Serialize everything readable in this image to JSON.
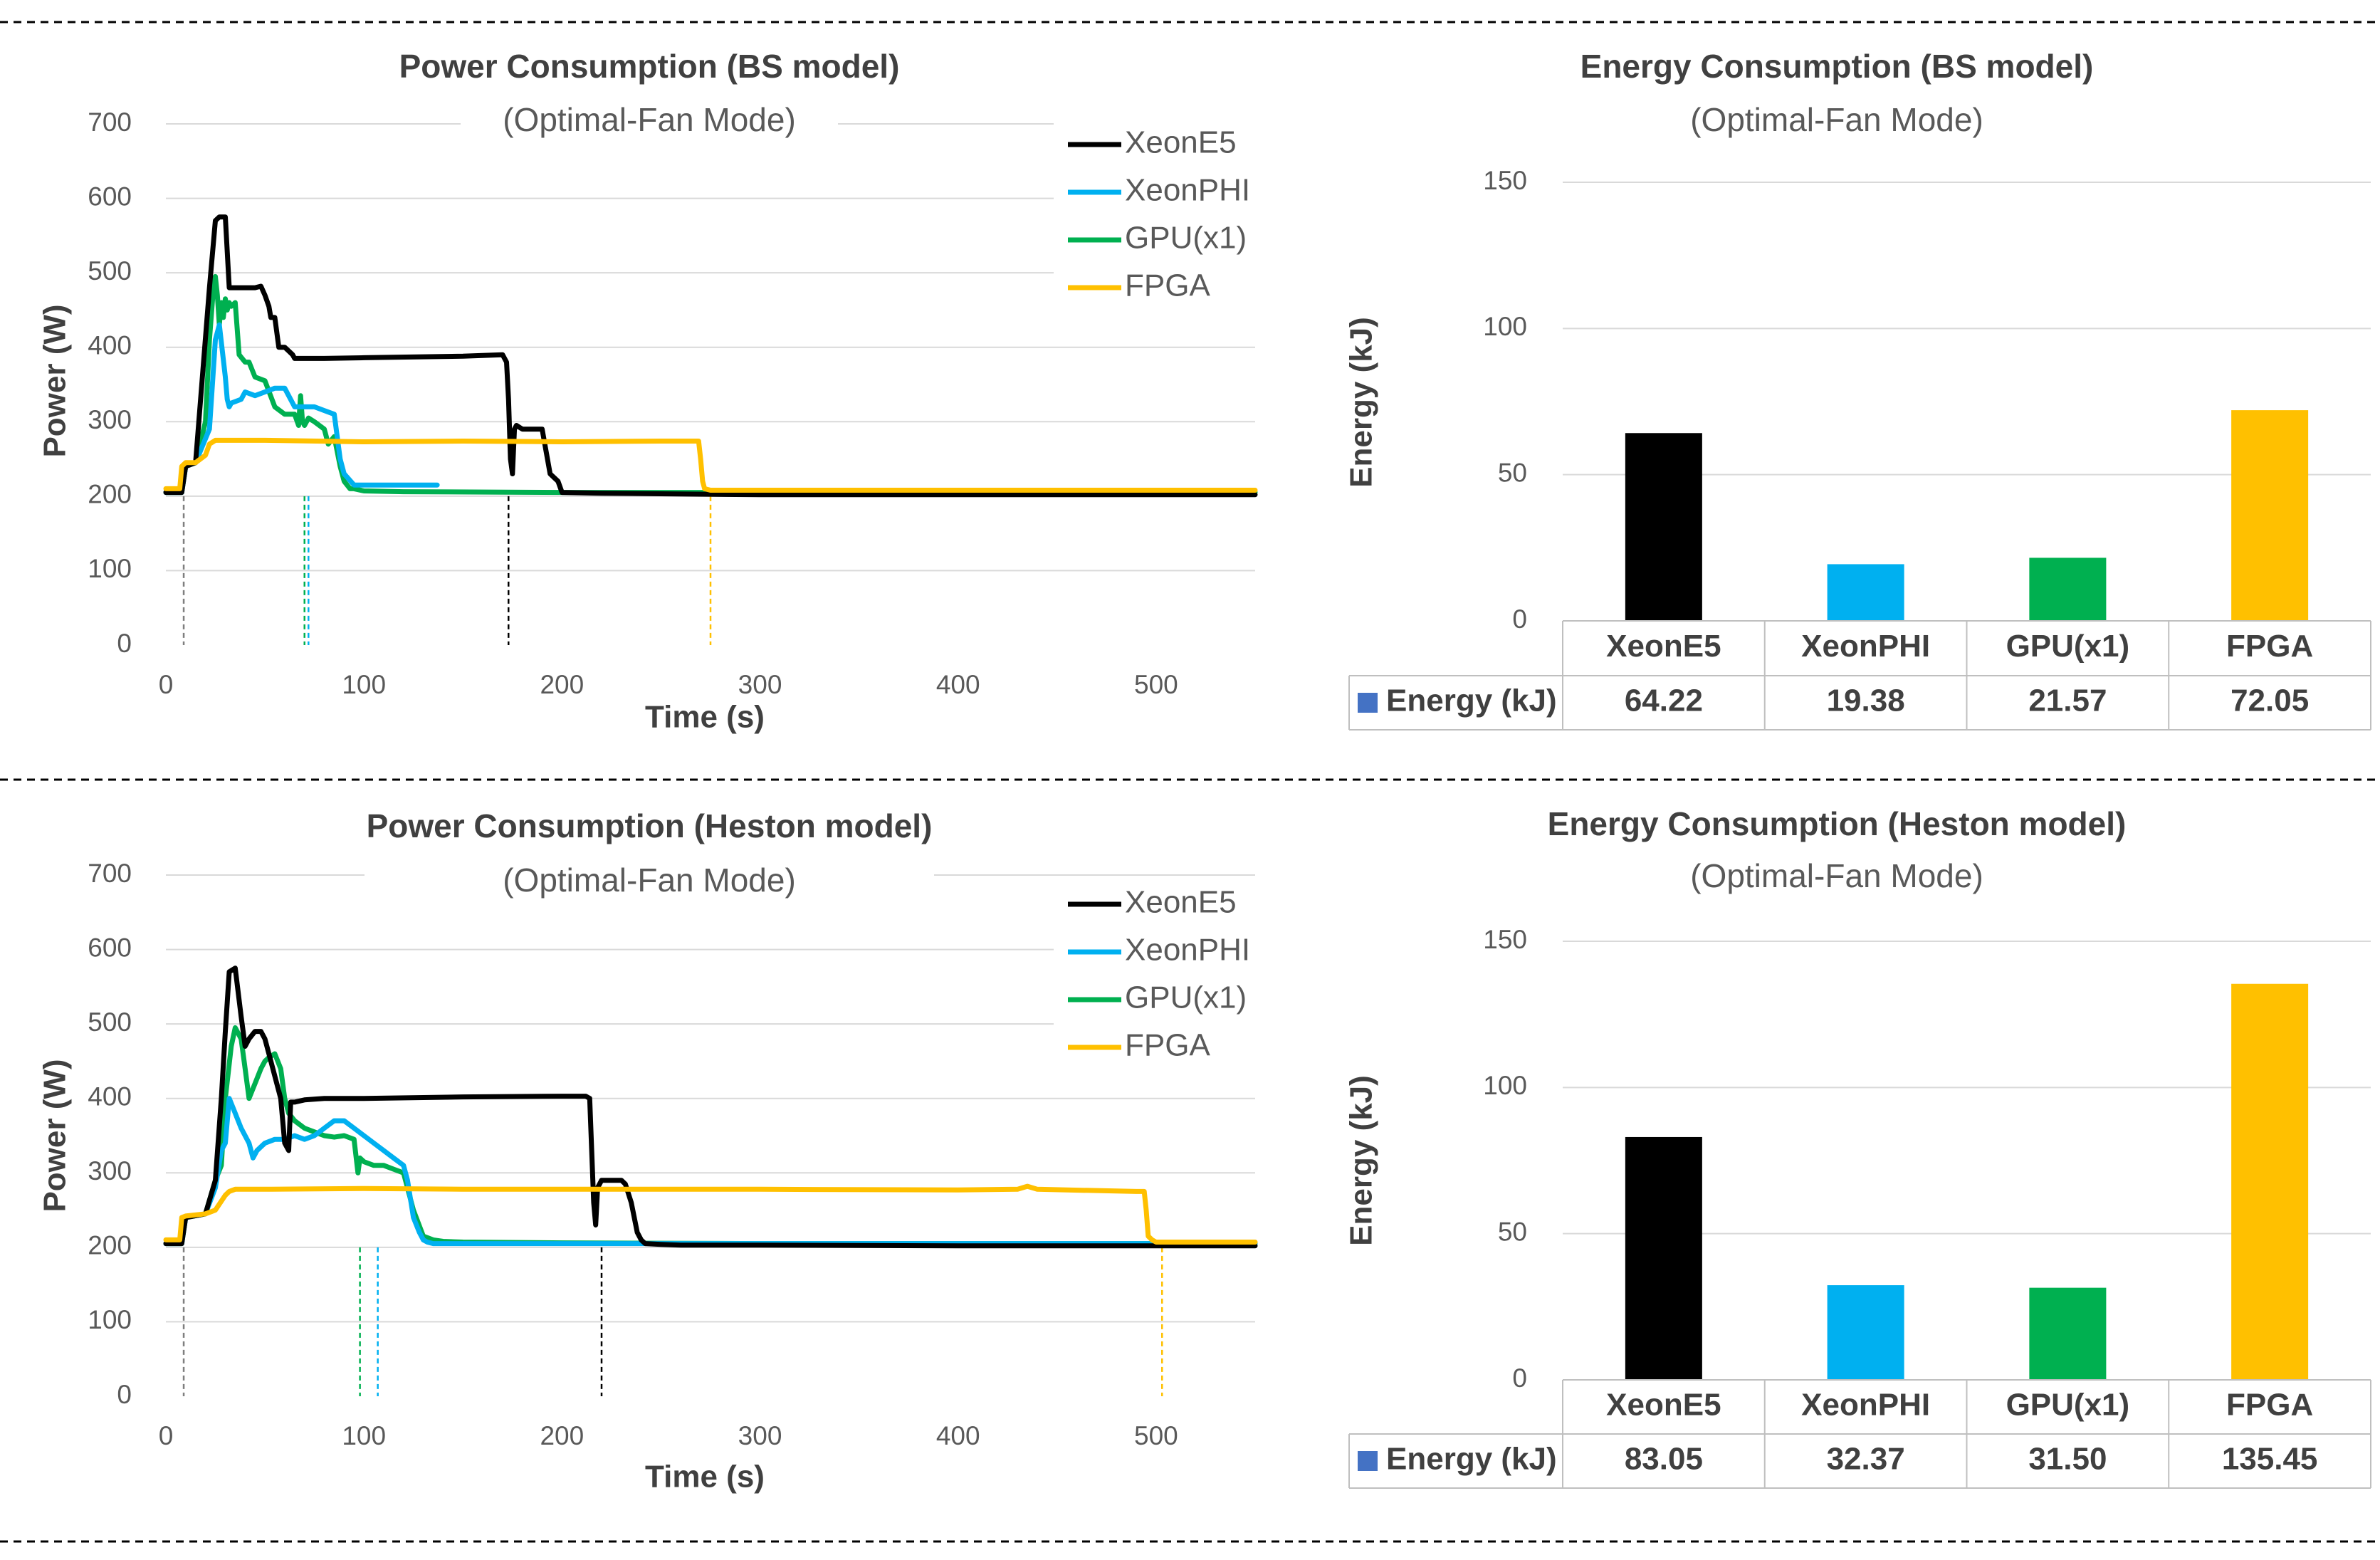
{
  "colors": {
    "XeonE5": "#000000",
    "XeonPHI": "#00B0F0",
    "GPU": "#00B050",
    "FPGA": "#FFC000",
    "grey_marker": "#7f7f7f",
    "legend_square": "#4472C4",
    "grid": "#d9d9d9",
    "text": "#595959",
    "title": "#404040"
  },
  "chart_data": [
    {
      "id": "bs-power",
      "type": "line",
      "title": "Power Consumption (BS model)",
      "subtitle": "(Optimal-Fan Mode)",
      "xlabel": "Time (s)",
      "ylabel": "Power (W)",
      "xlim": [
        0,
        550
      ],
      "ylim": [
        0,
        700
      ],
      "xticks": [
        0,
        100,
        200,
        300,
        400,
        500
      ],
      "yticks": [
        0,
        100,
        200,
        300,
        400,
        500,
        600,
        700
      ],
      "legend": [
        "XeonE5",
        "XeonPHI",
        "GPU(x1)",
        "FPGA"
      ],
      "legend_position": "top-right",
      "series": [
        {
          "name": "XeonE5",
          "color_key": "XeonE5",
          "x": [
            0,
            8,
            10,
            15,
            22,
            25,
            27,
            30,
            32,
            33,
            40,
            45,
            48,
            50,
            52,
            53,
            55,
            57,
            58,
            60,
            62,
            64,
            65,
            70,
            80,
            100,
            150,
            170,
            172,
            173,
            174,
            175,
            176,
            177,
            180,
            190,
            192,
            194,
            196,
            198,
            200,
            220,
            300,
            400,
            550
          ],
          "y": [
            205,
            205,
            240,
            245,
            480,
            570,
            575,
            575,
            480,
            480,
            480,
            480,
            482,
            470,
            455,
            440,
            440,
            400,
            400,
            400,
            395,
            390,
            385,
            385,
            385,
            386,
            388,
            390,
            380,
            330,
            250,
            230,
            290,
            295,
            290,
            290,
            260,
            230,
            225,
            220,
            205,
            204,
            202,
            202,
            202
          ]
        },
        {
          "name": "XeonPHI",
          "color_key": "XeonPHI",
          "x": [
            0,
            8,
            10,
            15,
            22,
            25,
            27,
            30,
            31,
            32,
            33,
            38,
            40,
            45,
            50,
            55,
            60,
            65,
            70,
            75,
            80,
            85,
            88,
            90,
            95,
            100,
            120,
            137
          ],
          "y": [
            205,
            205,
            240,
            245,
            290,
            410,
            430,
            360,
            330,
            320,
            325,
            330,
            340,
            335,
            340,
            345,
            345,
            320,
            320,
            320,
            315,
            310,
            250,
            230,
            215,
            215,
            215,
            215
          ]
        },
        {
          "name": "GPU(x1)",
          "color_key": "GPU",
          "x": [
            0,
            8,
            10,
            15,
            20,
            22,
            24,
            25,
            26,
            27,
            28,
            29,
            30,
            31,
            32,
            33,
            35,
            37,
            40,
            42,
            45,
            50,
            55,
            60,
            65,
            67,
            68,
            69,
            70,
            71,
            72,
            75,
            80,
            82,
            85,
            88,
            90,
            93,
            95,
            100,
            120,
            200,
            550
          ],
          "y": [
            205,
            205,
            240,
            245,
            300,
            410,
            480,
            495,
            470,
            430,
            460,
            440,
            465,
            450,
            460,
            455,
            460,
            390,
            380,
            380,
            360,
            355,
            320,
            310,
            310,
            295,
            335,
            300,
            295,
            300,
            305,
            300,
            290,
            270,
            280,
            240,
            220,
            210,
            210,
            207,
            206,
            205,
            205
          ]
        },
        {
          "name": "FPGA",
          "color_key": "FPGA",
          "x": [
            0,
            7,
            8,
            10,
            15,
            20,
            22,
            25,
            30,
            50,
            100,
            150,
            200,
            250,
            269,
            270,
            271,
            272,
            275,
            300,
            550
          ],
          "y": [
            210,
            210,
            240,
            245,
            245,
            255,
            270,
            275,
            275,
            275,
            273,
            274,
            273,
            274,
            274,
            250,
            220,
            210,
            208,
            208,
            208
          ]
        }
      ],
      "markers": [
        {
          "x": 9,
          "color_key": "grey_marker"
        },
        {
          "x": 70,
          "color_key": "GPU"
        },
        {
          "x": 72,
          "color_key": "XeonPHI"
        },
        {
          "x": 173,
          "color_key": "XeonE5"
        },
        {
          "x": 275,
          "color_key": "FPGA"
        }
      ]
    },
    {
      "id": "bs-energy",
      "type": "bar",
      "title": "Energy Consumption (BS model)",
      "subtitle": "(Optimal-Fan Mode)",
      "ylabel": "Energy (kJ)",
      "ylim": [
        0,
        150
      ],
      "yticks": [
        0,
        50,
        100,
        150
      ],
      "categories": [
        "XeonE5",
        "XeonPHI",
        "GPU(x1)",
        "FPGA"
      ],
      "color_keys": [
        "XeonE5",
        "XeonPHI",
        "GPU",
        "FPGA"
      ],
      "series": [
        {
          "name": "Energy (kJ)",
          "values": [
            64.22,
            19.38,
            21.57,
            72.05
          ]
        }
      ],
      "table": {
        "row_label": "Energy (kJ)",
        "cells": [
          "64.22",
          "19.38",
          "21.57",
          "72.05"
        ]
      }
    },
    {
      "id": "heston-power",
      "type": "line",
      "title": "Power Consumption (Heston model)",
      "subtitle": "(Optimal-Fan Mode)",
      "xlabel": "Time (s)",
      "ylabel": "Power (W)",
      "xlim": [
        0,
        550
      ],
      "ylim": [
        0,
        700
      ],
      "xticks": [
        0,
        100,
        200,
        300,
        400,
        500
      ],
      "yticks": [
        0,
        100,
        200,
        300,
        400,
        500,
        600,
        700
      ],
      "legend": [
        "XeonE5",
        "XeonPHI",
        "GPU(x1)",
        "FPGA"
      ],
      "legend_position": "top-right",
      "series": [
        {
          "name": "XeonE5",
          "color_key": "XeonE5",
          "x": [
            0,
            8,
            10,
            20,
            25,
            28,
            30,
            32,
            35,
            38,
            40,
            42,
            45,
            48,
            50,
            52,
            55,
            58,
            60,
            62,
            63,
            65,
            70,
            80,
            100,
            150,
            200,
            212,
            214,
            215,
            216,
            217,
            218,
            220,
            225,
            230,
            232,
            235,
            238,
            240,
            242,
            250,
            260,
            300,
            400,
            550
          ],
          "y": [
            205,
            205,
            240,
            245,
            290,
            400,
            490,
            570,
            575,
            510,
            470,
            480,
            490,
            490,
            480,
            460,
            430,
            400,
            340,
            330,
            395,
            395,
            398,
            400,
            400,
            402,
            403,
            403,
            400,
            330,
            260,
            230,
            280,
            290,
            290,
            290,
            285,
            260,
            220,
            210,
            205,
            204,
            203,
            203,
            202,
            202
          ]
        },
        {
          "name": "XeonPHI",
          "color_key": "XeonPHI",
          "x": [
            0,
            8,
            10,
            20,
            25,
            28,
            30,
            32,
            35,
            38,
            42,
            44,
            46,
            48,
            50,
            55,
            60,
            65,
            70,
            75,
            80,
            85,
            90,
            95,
            100,
            105,
            110,
            115,
            120,
            122,
            125,
            128,
            130,
            132,
            135,
            140,
            200,
            300,
            550
          ],
          "y": [
            205,
            205,
            240,
            245,
            280,
            330,
            340,
            400,
            380,
            360,
            340,
            320,
            330,
            335,
            340,
            345,
            345,
            350,
            345,
            350,
            360,
            370,
            370,
            360,
            350,
            340,
            330,
            320,
            310,
            290,
            240,
            220,
            210,
            207,
            205,
            205,
            205,
            205,
            205
          ]
        },
        {
          "name": "GPU(x1)",
          "color_key": "GPU",
          "x": [
            0,
            8,
            10,
            20,
            25,
            28,
            30,
            33,
            35,
            38,
            40,
            42,
            45,
            48,
            50,
            52,
            55,
            58,
            60,
            62,
            65,
            70,
            75,
            80,
            85,
            90,
            95,
            97,
            98,
            100,
            105,
            110,
            115,
            120,
            125,
            130,
            135,
            140,
            150,
            200,
            300,
            550
          ],
          "y": [
            205,
            205,
            240,
            245,
            290,
            310,
            400,
            470,
            495,
            480,
            440,
            400,
            420,
            440,
            450,
            455,
            460,
            440,
            400,
            380,
            370,
            360,
            355,
            350,
            348,
            350,
            345,
            300,
            320,
            315,
            310,
            310,
            305,
            300,
            250,
            215,
            210,
            208,
            207,
            206,
            205,
            205
          ]
        },
        {
          "name": "FPGA",
          "color_key": "FPGA",
          "x": [
            0,
            7,
            8,
            10,
            20,
            25,
            30,
            32,
            35,
            50,
            100,
            150,
            200,
            300,
            400,
            430,
            435,
            440,
            490,
            494,
            495,
            496,
            498,
            500,
            550
          ],
          "y": [
            210,
            210,
            240,
            242,
            245,
            250,
            270,
            275,
            278,
            278,
            279,
            278,
            278,
            278,
            277,
            278,
            282,
            278,
            275,
            275,
            250,
            215,
            210,
            207,
            207
          ]
        }
      ],
      "markers": [
        {
          "x": 9,
          "color_key": "grey_marker"
        },
        {
          "x": 98,
          "color_key": "GPU"
        },
        {
          "x": 107,
          "color_key": "XeonPHI"
        },
        {
          "x": 220,
          "color_key": "XeonE5"
        },
        {
          "x": 503,
          "color_key": "FPGA"
        }
      ]
    },
    {
      "id": "heston-energy",
      "type": "bar",
      "title": "Energy Consumption (Heston model)",
      "subtitle": "(Optimal-Fan Mode)",
      "ylabel": "Energy (kJ)",
      "ylim": [
        0,
        150
      ],
      "yticks": [
        0,
        50,
        100,
        150
      ],
      "categories": [
        "XeonE5",
        "XeonPHI",
        "GPU(x1)",
        "FPGA"
      ],
      "color_keys": [
        "XeonE5",
        "XeonPHI",
        "GPU",
        "FPGA"
      ],
      "series": [
        {
          "name": "Energy (kJ)",
          "values": [
            83.05,
            32.37,
            31.5,
            135.45
          ]
        }
      ],
      "table": {
        "row_label": "Energy (kJ)",
        "cells": [
          "83.05",
          "32.37",
          "31.50",
          "135.45"
        ]
      }
    }
  ]
}
